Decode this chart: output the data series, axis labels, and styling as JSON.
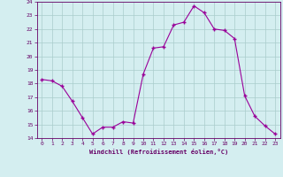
{
  "hours": [
    0,
    1,
    2,
    3,
    4,
    5,
    6,
    7,
    8,
    9,
    10,
    11,
    12,
    13,
    14,
    15,
    16,
    17,
    18,
    19,
    20,
    21,
    22,
    23
  ],
  "temps": [
    18.3,
    18.2,
    17.8,
    16.7,
    15.5,
    14.3,
    14.8,
    14.8,
    15.2,
    15.1,
    18.7,
    20.6,
    20.7,
    22.3,
    22.5,
    23.7,
    23.2,
    22.0,
    21.9,
    21.3,
    17.1,
    15.6,
    14.9,
    14.3
  ],
  "line_color": "#990099",
  "marker_color": "#990099",
  "bg_color": "#d4eef0",
  "grid_color": "#aacccc",
  "xlabel": "Windchill (Refroidissement éolien,°C)",
  "ylim": [
    14,
    24
  ],
  "yticks": [
    14,
    15,
    16,
    17,
    18,
    19,
    20,
    21,
    22,
    23,
    24
  ],
  "xlim": [
    -0.5,
    23.5
  ],
  "xtick_labels": [
    "0",
    "1",
    "2",
    "3",
    "4",
    "5",
    "6",
    "7",
    "8",
    "9",
    "10",
    "11",
    "12",
    "13",
    "14",
    "15",
    "16",
    "17",
    "18",
    "19",
    "20",
    "21",
    "22",
    "23"
  ]
}
